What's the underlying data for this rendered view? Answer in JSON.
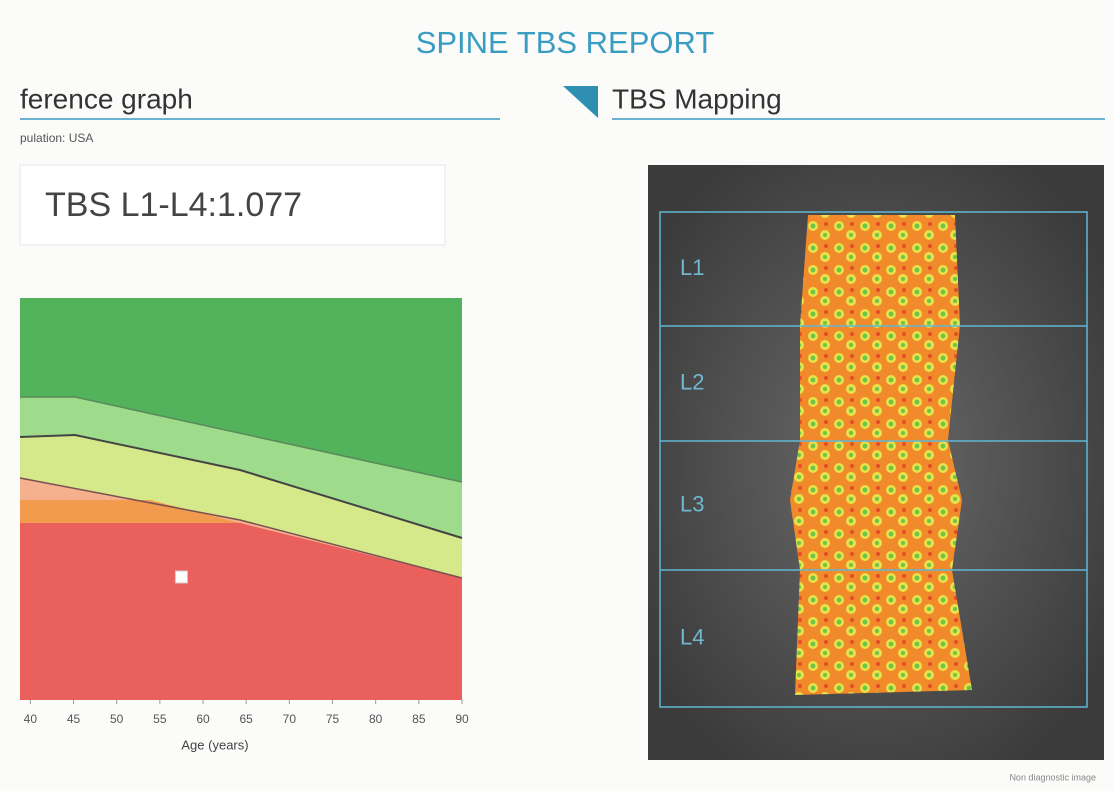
{
  "header": {
    "title": "SPINE TBS  REPORT"
  },
  "reference_graph": {
    "title": "ference graph",
    "subtitle": "pulation: USA",
    "value_box": "TBS L1-L4:1.077",
    "chart": {
      "type": "scatter",
      "xlabel": "Age (years)",
      "xlim": [
        38.8,
        90
      ],
      "xticks": [
        40,
        45,
        50,
        55,
        60,
        65,
        70,
        75,
        80,
        85,
        90
      ],
      "x": [
        57.5
      ],
      "color": "#ffffff"
    }
  },
  "mapping": {
    "title": "TBS Mapping",
    "labels": [
      "L1",
      "L2",
      "L3",
      "L4"
    ],
    "footnote": "Non diagnostic image"
  }
}
